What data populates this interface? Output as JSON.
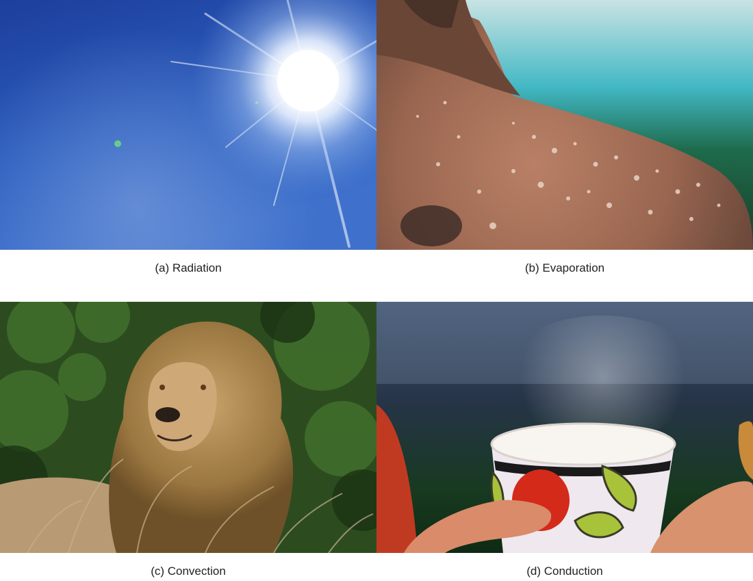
{
  "figure": {
    "panels": [
      {
        "id": "a",
        "caption": "(a) Radiation",
        "subject": "sun-in-blue-sky"
      },
      {
        "id": "b",
        "caption": "(b) Evaporation",
        "subject": "sweat-on-shoulder"
      },
      {
        "id": "c",
        "caption": "(c) Convection",
        "subject": "lion-in-wind"
      },
      {
        "id": "d",
        "caption": "(d) Conduction",
        "subject": "hands-holding-hot-cup"
      }
    ]
  },
  "colors": {
    "sky": "#1f4fb0",
    "skin": "#b27a5e",
    "foliage": "#2f5a22",
    "mane": "#a9834a",
    "cup_red": "#d42a1a",
    "cup_green": "#a8c23a"
  }
}
